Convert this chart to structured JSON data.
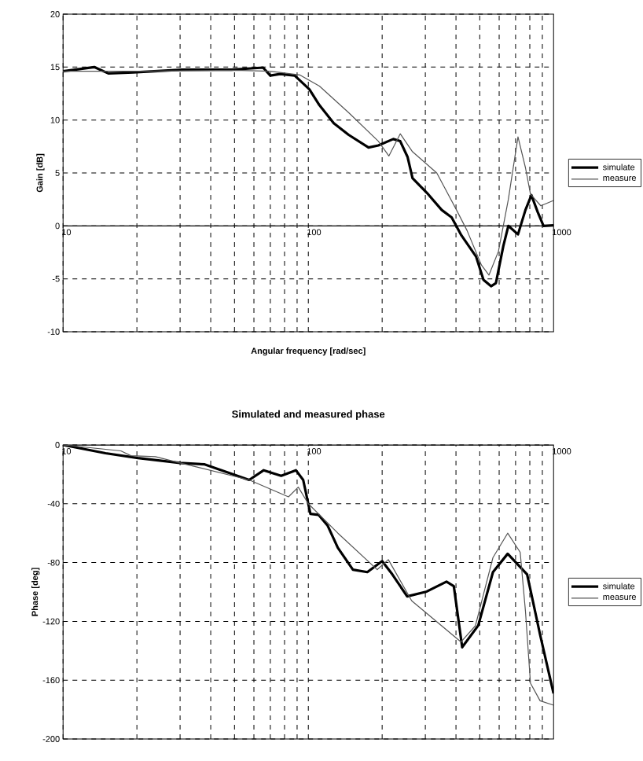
{
  "chart_data": [
    {
      "type": "line",
      "ylabel": "Gain [dB]",
      "xlabel": "Angular frequency [rad/sec]",
      "log": "x",
      "xlim": [
        10,
        1000
      ],
      "xticks": [
        10,
        100,
        1000
      ],
      "ylim": [
        -10,
        20
      ],
      "yticks": [
        -10,
        -5,
        0,
        5,
        10,
        15,
        20
      ],
      "grid": true,
      "legend": "right",
      "series": [
        {
          "name": "simulate",
          "color": "#000000",
          "x": [
            10,
            13.4,
            15.3,
            19.3,
            30.6,
            48.5,
            65.4,
            70,
            76.8,
            88,
            101,
            111,
            127,
            146,
            176,
            193,
            222,
            237,
            254,
            266,
            305,
            350,
            384,
            421,
            483,
            518,
            556,
            582,
            624,
            654,
            716,
            768,
            812,
            862,
            910,
            1000
          ],
          "values": [
            14.6,
            15.0,
            14.4,
            14.5,
            14.75,
            14.75,
            14.95,
            14.2,
            14.35,
            14.2,
            12.9,
            11.4,
            9.7,
            8.6,
            7.4,
            7.6,
            8.2,
            8.0,
            6.5,
            4.5,
            3.1,
            1.5,
            0.8,
            -0.9,
            -2.9,
            -5.1,
            -5.7,
            -5.4,
            -1.9,
            0,
            -0.8,
            1.5,
            2.9,
            1.3,
            0,
            0.05
          ]
        },
        {
          "name": "measure",
          "color": "#555555",
          "x": [
            10,
            20,
            50,
            70,
            92.5,
            111,
            146,
            193,
            213,
            237,
            266,
            334,
            402,
            444,
            508,
            545,
            596,
            654,
            716,
            768,
            805,
            887,
            1000
          ],
          "values": [
            14.6,
            14.6,
            14.7,
            14.6,
            14.25,
            13.2,
            10.7,
            8.0,
            6.6,
            8.7,
            7.0,
            5.0,
            1.5,
            -0.45,
            -3.7,
            -4.65,
            -2.4,
            2.5,
            8.4,
            5.5,
            3.0,
            1.9,
            2.4
          ]
        }
      ]
    },
    {
      "type": "line",
      "title": "Simulated and measured phase",
      "ylabel": "Phase [deg]",
      "log": "x",
      "xlim": [
        10,
        1000
      ],
      "xticks": [
        10,
        100,
        1000
      ],
      "ylim": [
        -200,
        0
      ],
      "yticks": [
        -200,
        -160,
        -120,
        -80,
        -40,
        0
      ],
      "grid": true,
      "legend": "right",
      "series": [
        {
          "name": "simulate",
          "color": "#000000",
          "x": [
            10,
            14.9,
            20.2,
            30,
            37.8,
            57.4,
            65.8,
            77.5,
            89,
            95.3,
            102,
            110,
            120,
            132,
            152,
            174,
            200,
            220,
            253,
            304,
            366,
            392,
            424,
            493,
            566,
            650,
            780,
            881,
            1000
          ],
          "values": [
            0,
            -5.6,
            -8.9,
            -12.2,
            -13.2,
            -23.8,
            -17.2,
            -21,
            -17.2,
            -23.8,
            -46.9,
            -47.5,
            -55,
            -70,
            -84.8,
            -86.5,
            -79,
            -88,
            -103,
            -99.7,
            -93,
            -96,
            -137.6,
            -122.8,
            -86.5,
            -74,
            -88,
            -129,
            -169
          ]
        },
        {
          "name": "measure",
          "color": "#555555",
          "x": [
            10,
            17.2,
            18.9,
            23.8,
            30,
            57.4,
            83,
            91,
            100,
            132,
            191,
            212,
            264,
            419,
            480,
            566,
            650,
            731,
            768,
            805,
            881,
            1000
          ],
          "values": [
            0,
            -4,
            -7.3,
            -8,
            -12.2,
            -23.8,
            -35.3,
            -28.7,
            -40,
            -60,
            -84.8,
            -78,
            -106,
            -134,
            -123,
            -76.6,
            -60,
            -73,
            -113,
            -162,
            -174,
            -177
          ]
        }
      ]
    }
  ]
}
